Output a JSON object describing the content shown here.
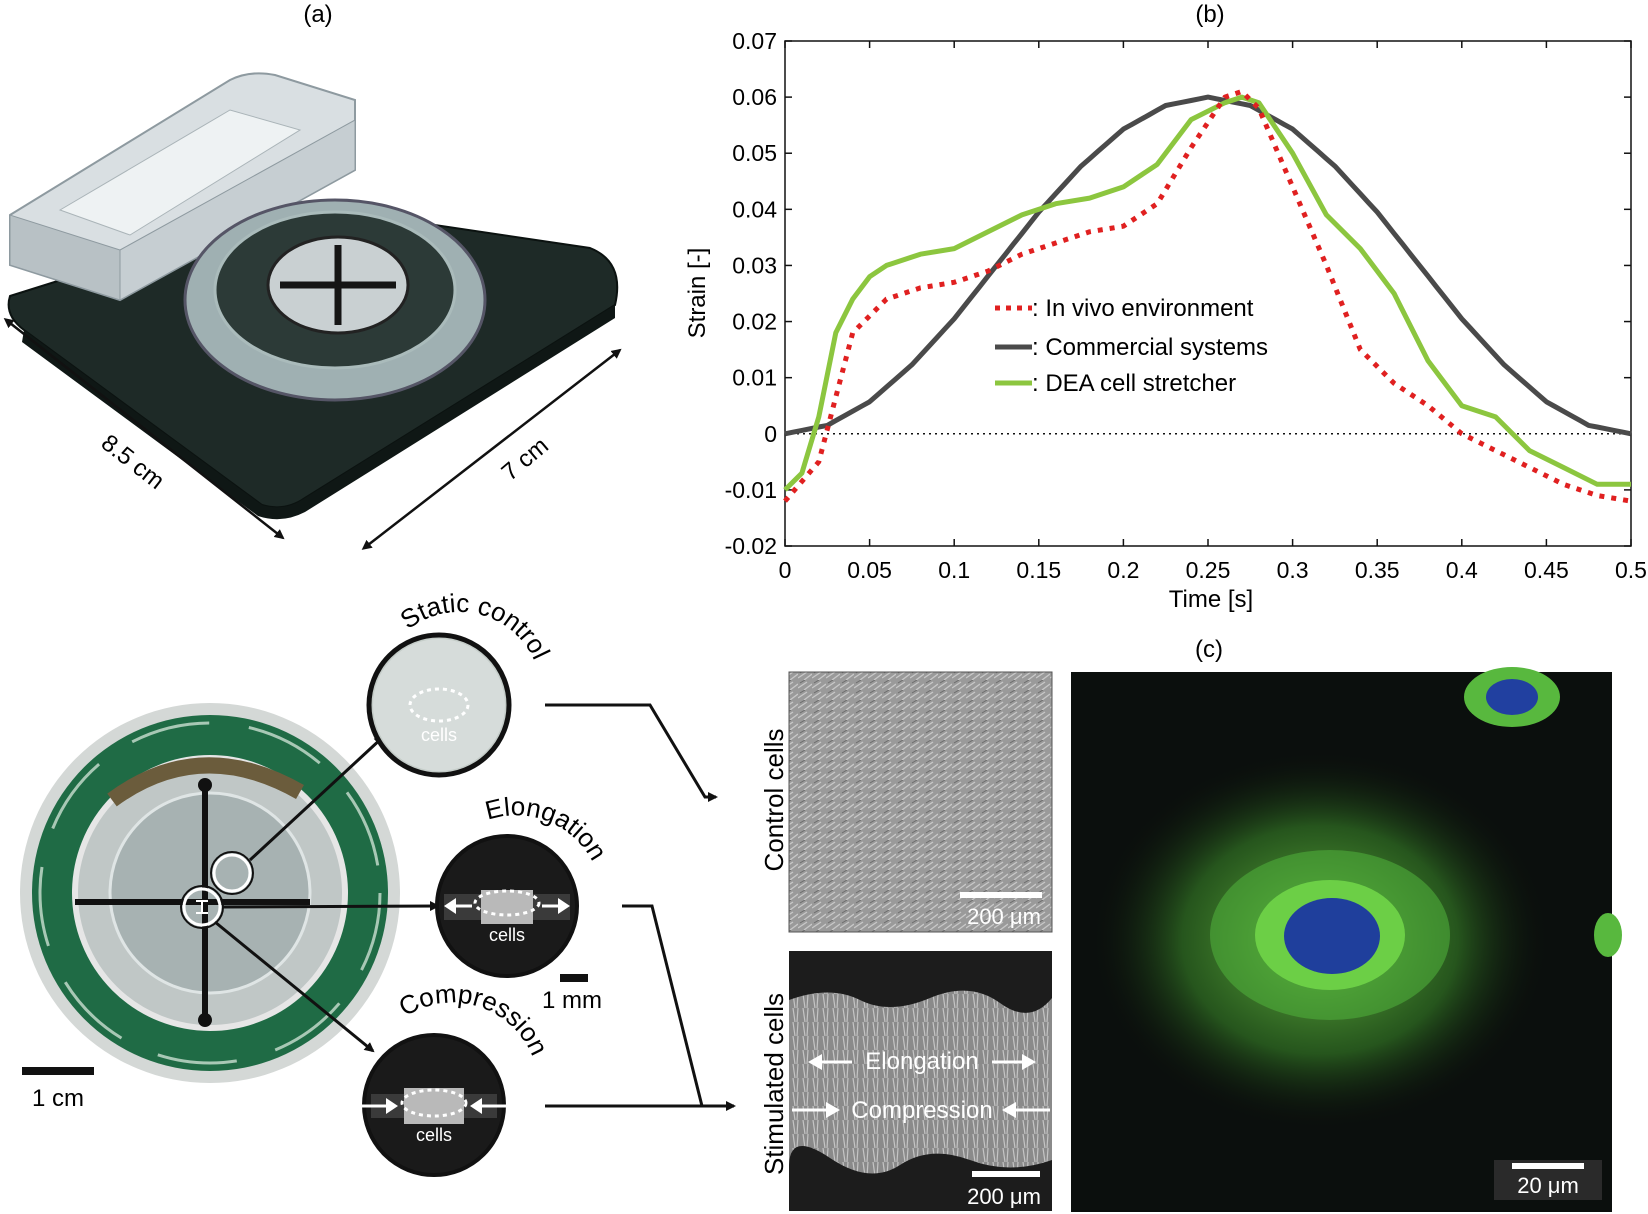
{
  "panel_labels": {
    "a": "(a)",
    "b": "(b)",
    "c": "(c)"
  },
  "panel_a": {
    "dim_length": "8.5 cm",
    "dim_width": "7 cm"
  },
  "chart_data": {
    "type": "line",
    "xlabel": "Time [s]",
    "ylabel": "Strain [-]",
    "xlim": [
      0,
      0.5
    ],
    "ylim": [
      -0.02,
      0.07
    ],
    "xticks": [
      "0",
      "0.05",
      "0.1",
      "0.15",
      "0.2",
      "0.25",
      "0.3",
      "0.35",
      "0.4",
      "0.45",
      "0.5"
    ],
    "yticks": [
      "-0.02",
      "-0.01",
      "0",
      "0.01",
      "0.02",
      "0.03",
      "0.04",
      "0.05",
      "0.06",
      "0.07"
    ],
    "zero_line": true,
    "legend_position": "center-right",
    "series": [
      {
        "name": ": In vivo environment",
        "color": "#e02020",
        "style": "dotted",
        "x": [
          0,
          0.02,
          0.04,
          0.06,
          0.08,
          0.1,
          0.12,
          0.14,
          0.16,
          0.18,
          0.2,
          0.22,
          0.24,
          0.26,
          0.27,
          0.28,
          0.3,
          0.32,
          0.34,
          0.36,
          0.38,
          0.4,
          0.42,
          0.44,
          0.46,
          0.48,
          0.5
        ],
        "y": [
          -0.012,
          -0.005,
          0.018,
          0.024,
          0.026,
          0.027,
          0.029,
          0.032,
          0.034,
          0.036,
          0.037,
          0.041,
          0.051,
          0.06,
          0.061,
          0.058,
          0.044,
          0.03,
          0.015,
          0.009,
          0.005,
          0.0,
          -0.003,
          -0.006,
          -0.009,
          -0.011,
          -0.012
        ]
      },
      {
        "name": ": Commercial systems",
        "color": "#4a4a4a",
        "style": "solid",
        "x": [
          0,
          0.025,
          0.05,
          0.075,
          0.1,
          0.125,
          0.15,
          0.175,
          0.2,
          0.225,
          0.25,
          0.275,
          0.3,
          0.325,
          0.35,
          0.375,
          0.4,
          0.425,
          0.45,
          0.475,
          0.5
        ],
        "y": [
          0.0,
          0.0015,
          0.0057,
          0.0123,
          0.0205,
          0.03,
          0.0395,
          0.0477,
          0.0543,
          0.0585,
          0.06,
          0.0585,
          0.0543,
          0.0477,
          0.0395,
          0.03,
          0.0205,
          0.0123,
          0.0057,
          0.0015,
          0.0
        ]
      },
      {
        "name": ": DEA cell stretcher",
        "color": "#8cc63f",
        "style": "solid",
        "x": [
          0,
          0.01,
          0.02,
          0.03,
          0.04,
          0.05,
          0.06,
          0.08,
          0.1,
          0.12,
          0.14,
          0.16,
          0.18,
          0.2,
          0.22,
          0.24,
          0.26,
          0.27,
          0.28,
          0.3,
          0.32,
          0.34,
          0.36,
          0.38,
          0.4,
          0.42,
          0.44,
          0.46,
          0.48,
          0.5
        ],
        "y": [
          -0.01,
          -0.007,
          0.003,
          0.018,
          0.024,
          0.028,
          0.03,
          0.032,
          0.033,
          0.036,
          0.039,
          0.041,
          0.042,
          0.044,
          0.048,
          0.056,
          0.059,
          0.06,
          0.059,
          0.05,
          0.039,
          0.033,
          0.025,
          0.013,
          0.005,
          0.003,
          -0.003,
          -0.006,
          -0.009,
          -0.009
        ]
      }
    ]
  },
  "panel_bottom": {
    "scale_device": "1 cm",
    "scale_inset": "1 mm",
    "static_control": "Static control",
    "elongation_title": "Elongation",
    "compression_title": "Compression",
    "cells": "cells",
    "control_cells": "Control cells",
    "stimulated_cells": "Stimulated cells",
    "scale_200um_top": "200 μm",
    "scale_200um_bottom": "200 μm",
    "stim_elongation": "Elongation",
    "stim_compression": "Compression",
    "scale_20um": "20 μm"
  }
}
